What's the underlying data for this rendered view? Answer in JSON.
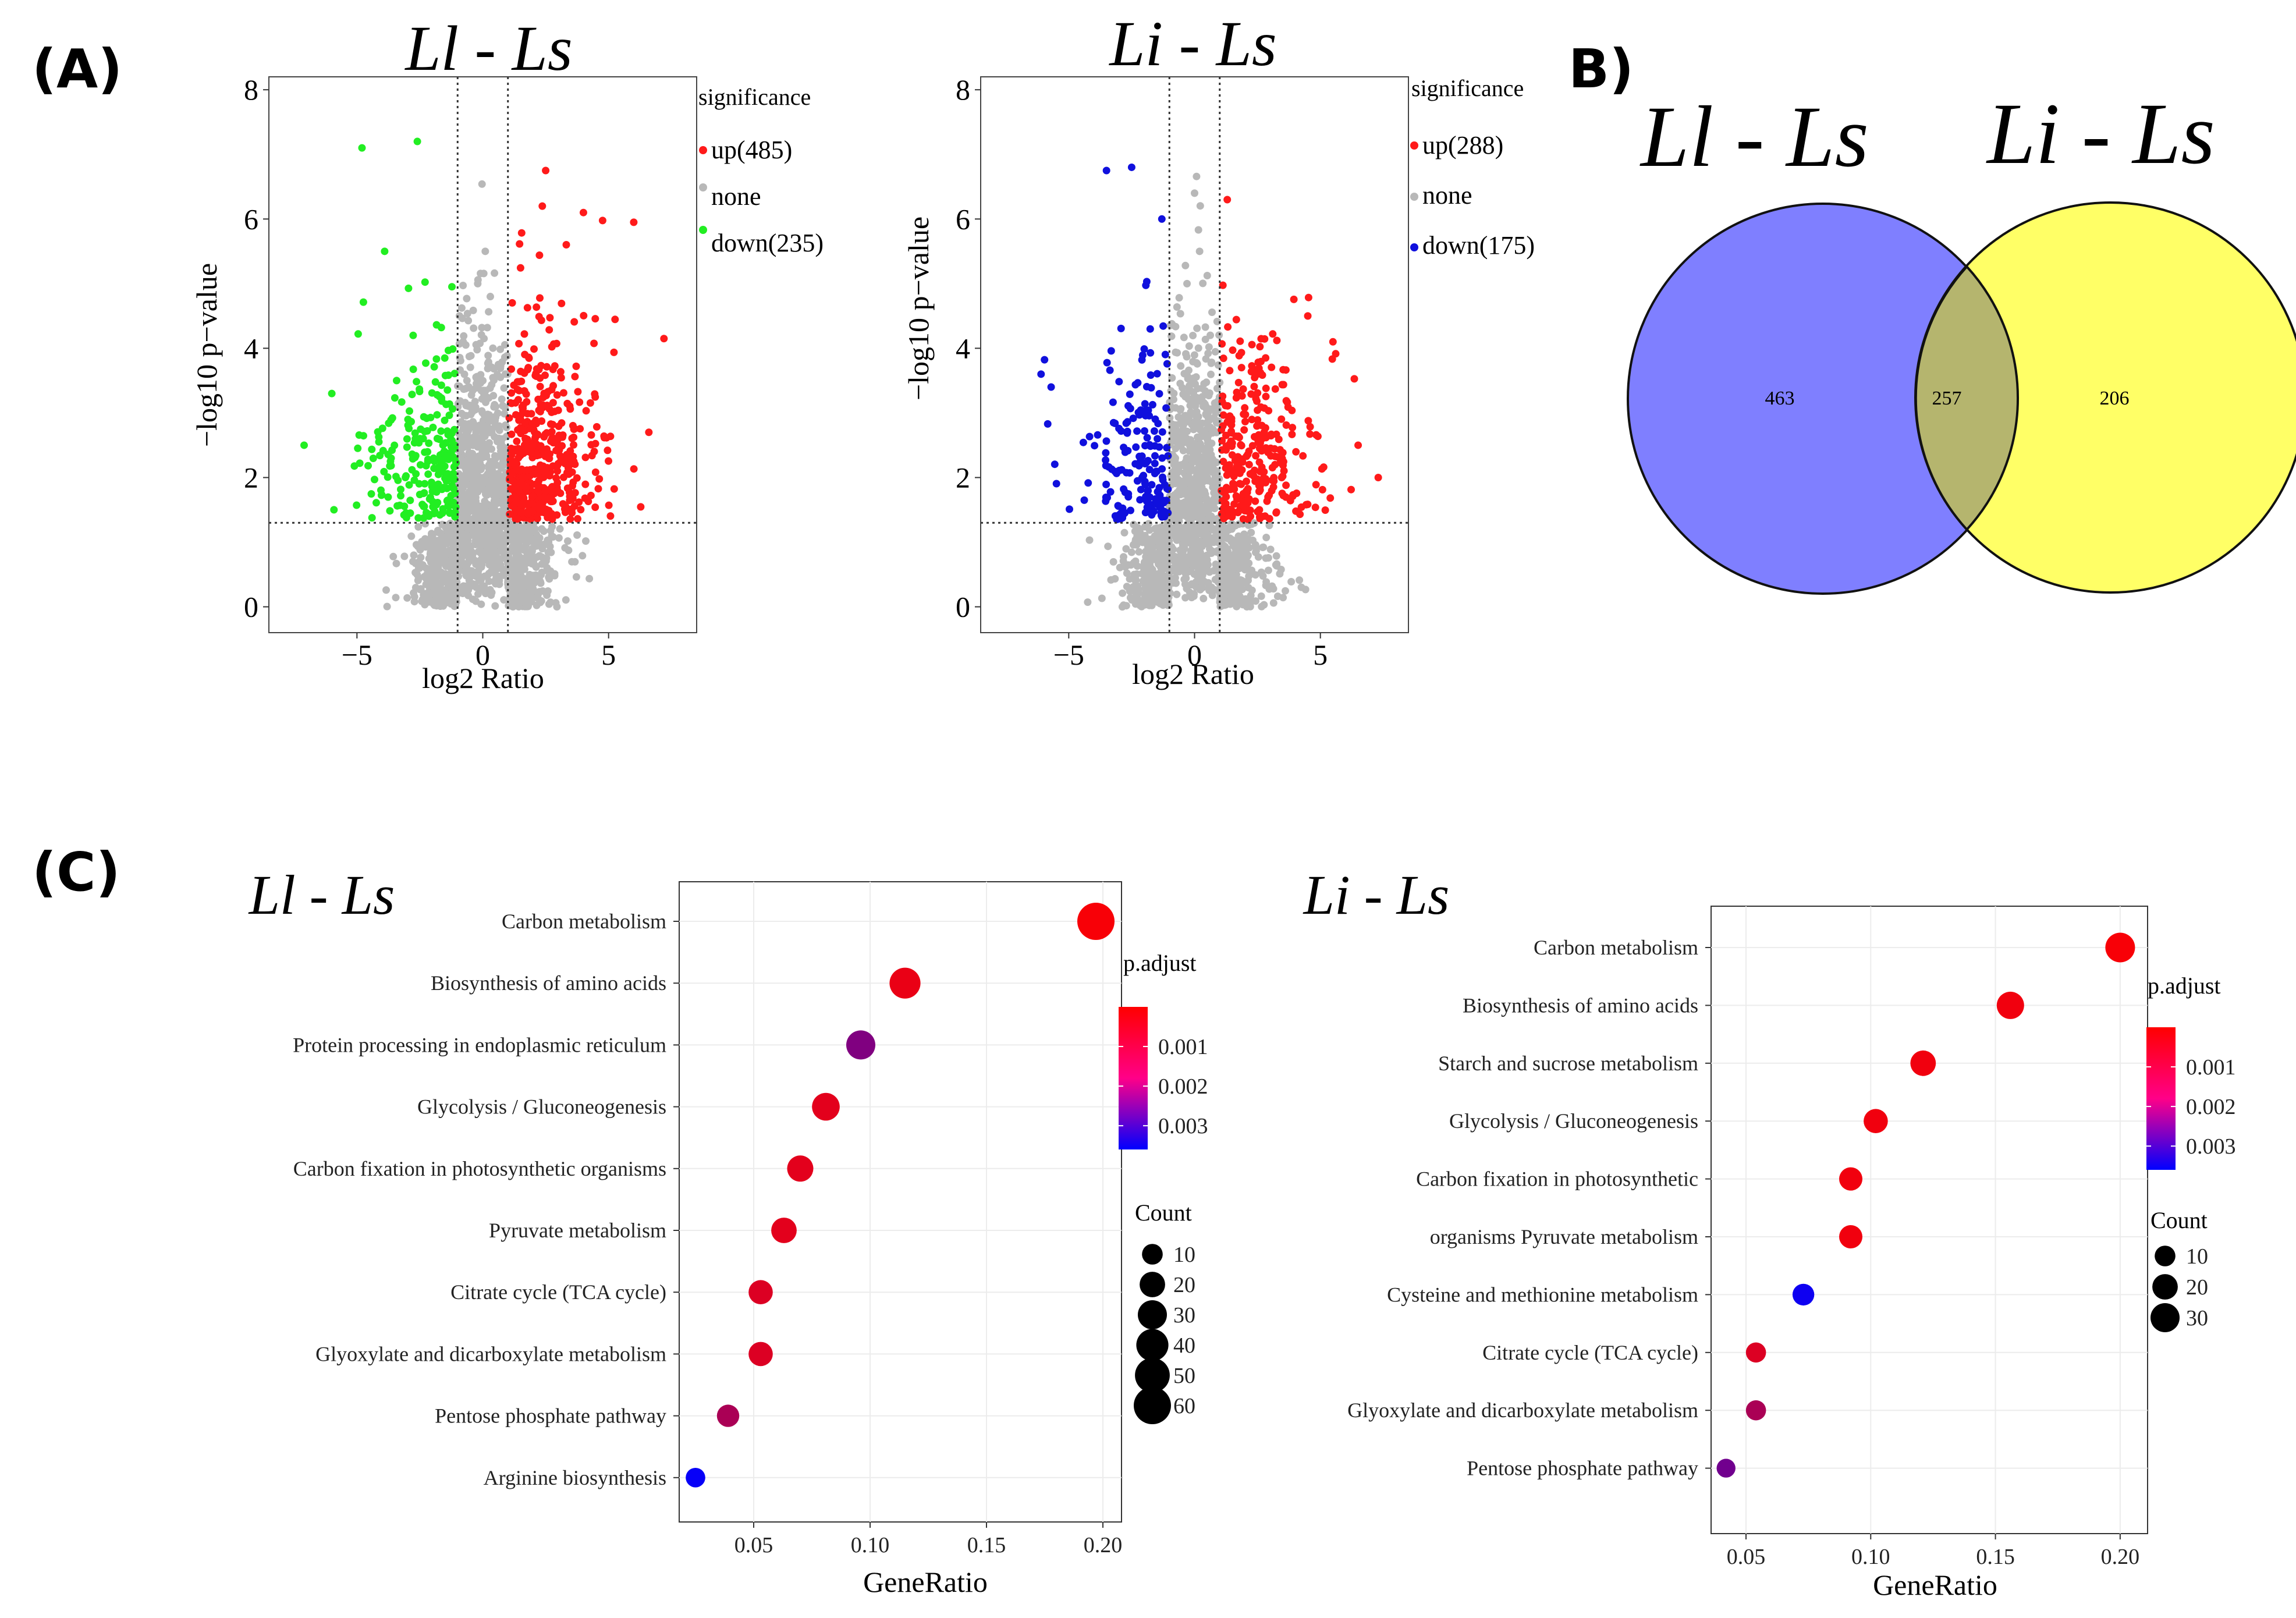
{
  "panels": {
    "A": "(A)",
    "B": "B)",
    "C": "(C)"
  },
  "colors": {
    "up": "#ff1a1a",
    "down_ll": "#22ee22",
    "down_li": "#1010dd",
    "none": "#b8b8b8",
    "venn_left": "#7f7fff",
    "venn_right": "#ffff66",
    "venn_overlap": "#b5b56e",
    "padj_high": "#ff0000",
    "padj_low": "#0000ff"
  },
  "chart_data": [
    {
      "type": "scatter",
      "subtype": "volcano",
      "title": "Ll - Ls",
      "xlabel": "log2 Ratio",
      "ylabel": "−log10 p−value",
      "xlim": [
        -8.5,
        8.5
      ],
      "ylim": [
        -0.4,
        8.2
      ],
      "xticks": [
        -5,
        0,
        5
      ],
      "xtick_labels": [
        "−5",
        "0",
        "5"
      ],
      "yticks": [
        0,
        2,
        4,
        6,
        8
      ],
      "fc_threshold": [
        -1,
        1
      ],
      "p_threshold": 1.3,
      "legend_title": "significance",
      "legend": [
        {
          "label": "up(485)",
          "key": "up",
          "count": 485
        },
        {
          "label": "none",
          "key": "none"
        },
        {
          "label": "down(235)",
          "key": "down",
          "count": 235
        }
      ],
      "down_color_key": "down_ll",
      "outliers": {
        "up": [
          [
            6.0,
            5.95
          ],
          [
            7.2,
            4.15
          ],
          [
            2.5,
            6.75
          ],
          [
            4.0,
            6.1
          ],
          [
            6.6,
            2.7
          ]
        ],
        "down": [
          [
            -4.8,
            7.1
          ],
          [
            -2.6,
            7.2
          ],
          [
            -7.1,
            2.5
          ],
          [
            -6.0,
            3.3
          ],
          [
            -3.9,
            5.5
          ]
        ],
        "none": [
          [
            0.1,
            5.5
          ],
          [
            -0.2,
            5.0
          ],
          [
            0.3,
            4.8
          ]
        ]
      }
    },
    {
      "type": "scatter",
      "subtype": "volcano",
      "title": "Li - Ls",
      "xlabel": "log2 Ratio",
      "ylabel": "−log10 p−value",
      "xlim": [
        -8.5,
        8.5
      ],
      "ylim": [
        -0.4,
        8.2
      ],
      "xticks": [
        -5,
        0,
        5
      ],
      "xtick_labels": [
        "−5",
        "0",
        "5"
      ],
      "yticks": [
        0,
        2,
        4,
        6,
        8
      ],
      "fc_threshold": [
        -1,
        1
      ],
      "p_threshold": 1.3,
      "legend_title": "significance",
      "legend": [
        {
          "label": "up(288)",
          "key": "up",
          "count": 288
        },
        {
          "label": "none",
          "key": "none"
        },
        {
          "label": "down(175)",
          "key": "down",
          "count": 175
        }
      ],
      "down_color_key": "down_li",
      "outliers": {
        "up": [
          [
            1.3,
            6.3
          ],
          [
            5.5,
            4.1
          ],
          [
            7.3,
            2.0
          ],
          [
            6.5,
            2.5
          ],
          [
            4.5,
            4.5
          ]
        ],
        "down": [
          [
            -3.5,
            6.75
          ],
          [
            -2.5,
            6.8
          ],
          [
            -6.1,
            3.6
          ],
          [
            -5.7,
            3.4
          ],
          [
            -1.3,
            6.0
          ]
        ],
        "none": [
          [
            0.0,
            6.4
          ],
          [
            0.2,
            5.5
          ],
          [
            -0.3,
            5.0
          ]
        ]
      }
    },
    {
      "type": "venn",
      "sets": [
        {
          "label": "Ll - Ls",
          "only": 463
        },
        {
          "label": "Li - Ls",
          "only": 206
        }
      ],
      "overlap": 257
    },
    {
      "type": "scatter",
      "subtype": "dotplot",
      "title": "Ll - Ls",
      "xlabel": "GeneRatio",
      "xlim": [
        0.018,
        0.208
      ],
      "xticks": [
        0.05,
        0.1,
        0.15,
        0.2
      ],
      "xtick_labels": [
        "0.05",
        "0.10",
        "0.15",
        "0.20"
      ],
      "categories": [
        "Carbon metabolism",
        "Biosynthesis of amino acids",
        "Protein processing in endoplasmic reticulum",
        "Glycolysis / Gluconeogenesis",
        "Carbon fixation in photosynthetic organisms",
        "Pyruvate metabolism",
        "Citrate cycle (TCA cycle)",
        "Glyoxylate and dicarboxylate metabolism",
        "Pentose phosphate pathway",
        "Arginine biosynthesis"
      ],
      "gene_ratio": [
        0.197,
        0.115,
        0.096,
        0.081,
        0.07,
        0.063,
        0.053,
        0.053,
        0.039,
        0.025
      ],
      "count": [
        60,
        36,
        30,
        26,
        22,
        20,
        17,
        17,
        13,
        8
      ],
      "p_adjust": [
        0.0001,
        0.0003,
        0.0018,
        0.0004,
        0.0004,
        0.0004,
        0.0005,
        0.0005,
        0.0012,
        0.0035
      ],
      "color_legend": {
        "title": "p.adjust",
        "ticks": [
          0.001,
          0.002,
          0.003
        ],
        "tick_labels": [
          "0.001",
          "0.002",
          "0.003"
        ],
        "range": [
          0.0,
          0.0036
        ]
      },
      "size_legend": {
        "title": "Count",
        "values": [
          10,
          20,
          30,
          40,
          50,
          60
        ],
        "labels": [
          "10",
          "20",
          "30",
          "40",
          "50",
          "60"
        ]
      }
    },
    {
      "type": "scatter",
      "subtype": "dotplot",
      "title": "Li - Ls",
      "xlabel": "GeneRatio",
      "xlim": [
        0.036,
        0.211
      ],
      "xticks": [
        0.05,
        0.1,
        0.15,
        0.2
      ],
      "xtick_labels": [
        "0.05",
        "0.10",
        "0.15",
        "0.20"
      ],
      "categories": [
        "Carbon metabolism",
        "Biosynthesis of amino acids",
        "Starch and sucrose metabolism",
        "Glycolysis / Gluconeogenesis",
        "Carbon fixation in photosynthetic",
        "organisms Pyruvate metabolism",
        "Cysteine and methionine metabolism",
        "Citrate cycle (TCA cycle)",
        "Glyoxylate and dicarboxylate metabolism",
        "Pentose phosphate pathway"
      ],
      "gene_ratio": [
        0.2,
        0.156,
        0.121,
        0.102,
        0.092,
        0.092,
        0.073,
        0.054,
        0.054,
        0.042
      ],
      "count": [
        32,
        25,
        20,
        17,
        15,
        15,
        12,
        9,
        9,
        7
      ],
      "p_adjust": [
        0.0001,
        0.0002,
        0.0002,
        0.0002,
        0.0002,
        0.0002,
        0.0034,
        0.0005,
        0.0012,
        0.002
      ],
      "color_legend": {
        "title": "p.adjust",
        "ticks": [
          0.001,
          0.002,
          0.003
        ],
        "tick_labels": [
          "0.001",
          "0.002",
          "0.003"
        ],
        "range": [
          0.0,
          0.0036
        ]
      },
      "size_legend": {
        "title": "Count",
        "values": [
          10,
          20,
          30
        ],
        "labels": [
          "10",
          "20",
          "30"
        ]
      }
    }
  ]
}
